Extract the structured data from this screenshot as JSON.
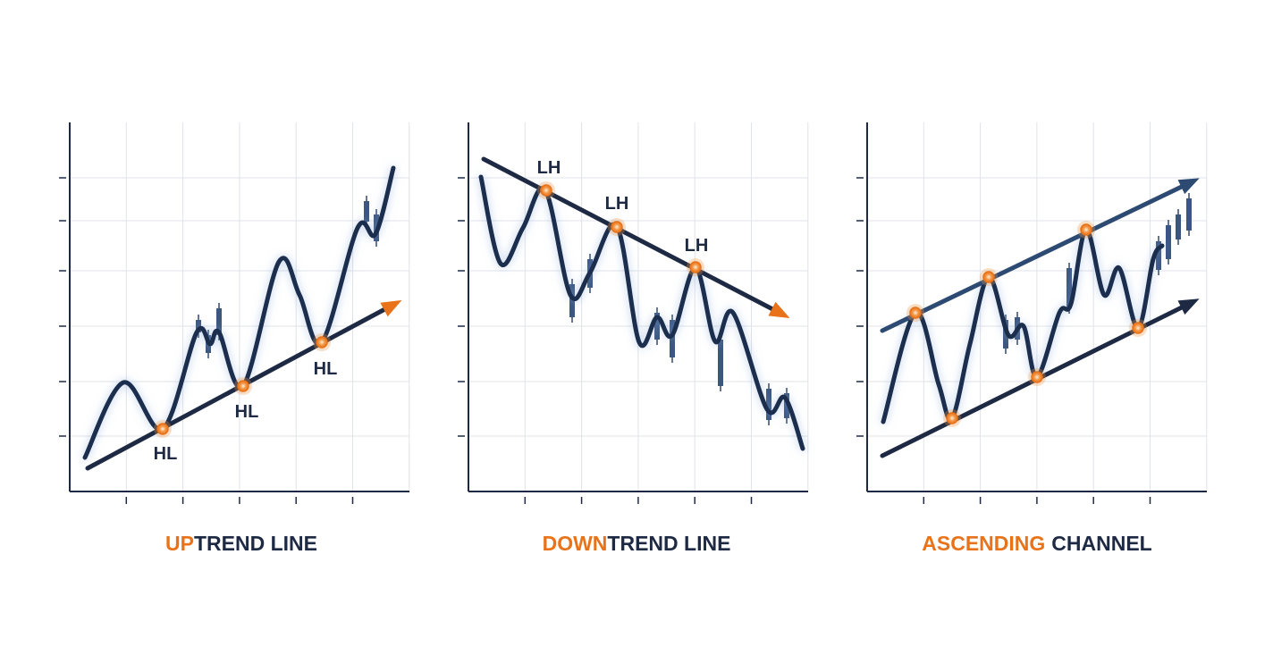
{
  "panels": [
    {
      "point_labels": [
        "HL",
        "HL",
        "HL"
      ],
      "caption": {
        "highlight": "UP",
        "rest": "TREND LINE"
      }
    },
    {
      "point_labels": [
        "LH",
        "LH",
        "LH"
      ],
      "caption": {
        "highlight": "DOWN",
        "rest": "TREND LINE"
      }
    },
    {
      "caption": {
        "highlight": "ASCENDING",
        "rest": "CHANNEL"
      }
    }
  ]
}
